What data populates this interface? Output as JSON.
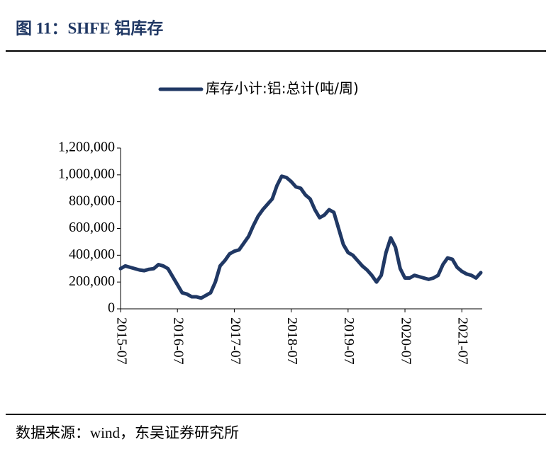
{
  "chart_data": {
    "type": "line",
    "title": "图 11：SHFE 铝库存",
    "source": "数据来源：wind，东吴证券研究所",
    "x": [
      "2015-07",
      "2015-08",
      "2015-09",
      "2015-10",
      "2015-11",
      "2015-12",
      "2016-01",
      "2016-02",
      "2016-03",
      "2016-04",
      "2016-05",
      "2016-06",
      "2016-07",
      "2016-08",
      "2016-09",
      "2016-10",
      "2016-11",
      "2016-12",
      "2017-01",
      "2017-02",
      "2017-03",
      "2017-04",
      "2017-05",
      "2017-06",
      "2017-07",
      "2017-08",
      "2017-09",
      "2017-10",
      "2017-11",
      "2017-12",
      "2018-01",
      "2018-02",
      "2018-03",
      "2018-04",
      "2018-05",
      "2018-06",
      "2018-07",
      "2018-08",
      "2018-09",
      "2018-10",
      "2018-11",
      "2018-12",
      "2019-01",
      "2019-02",
      "2019-03",
      "2019-04",
      "2019-05",
      "2019-06",
      "2019-07",
      "2019-08",
      "2019-09",
      "2019-10",
      "2019-11",
      "2019-12",
      "2020-01",
      "2020-02",
      "2020-03",
      "2020-04",
      "2020-05",
      "2020-06",
      "2020-07",
      "2020-08",
      "2020-09",
      "2020-10",
      "2020-11",
      "2020-12",
      "2021-01",
      "2021-02",
      "2021-03",
      "2021-04",
      "2021-05",
      "2021-06",
      "2021-07",
      "2021-08",
      "2021-09",
      "2021-10",
      "2021-11"
    ],
    "series": [
      {
        "name": "库存小计:铝:总计(吨/周)",
        "color": "#203864",
        "values": [
          300000,
          320000,
          310000,
          300000,
          290000,
          285000,
          295000,
          300000,
          330000,
          320000,
          300000,
          240000,
          180000,
          120000,
          110000,
          90000,
          90000,
          80000,
          100000,
          120000,
          200000,
          320000,
          360000,
          410000,
          430000,
          440000,
          490000,
          540000,
          620000,
          690000,
          740000,
          780000,
          820000,
          920000,
          990000,
          980000,
          950000,
          910000,
          900000,
          850000,
          820000,
          740000,
          680000,
          700000,
          740000,
          720000,
          600000,
          480000,
          420000,
          400000,
          360000,
          320000,
          290000,
          250000,
          200000,
          250000,
          420000,
          530000,
          460000,
          300000,
          230000,
          230000,
          250000,
          240000,
          230000,
          220000,
          230000,
          250000,
          330000,
          380000,
          370000,
          310000,
          280000,
          260000,
          250000,
          230000,
          270000
        ]
      }
    ],
    "xlim": [
      "2015-07",
      "2021-11"
    ],
    "xticks": [
      "2015-07",
      "2016-07",
      "2017-07",
      "2018-07",
      "2019-07",
      "2020-07",
      "2021-07"
    ],
    "ylim": [
      0,
      1200000
    ],
    "yticks": [
      0,
      {
        "value": 200000,
        "label": "200,000"
      },
      {
        "value": 400000,
        "label": "400,000"
      },
      {
        "value": 600000,
        "label": "600,000"
      },
      {
        "value": 800000,
        "label": "800,000"
      },
      {
        "value": 1000000,
        "label": "1,000,000"
      },
      {
        "value": 1200000,
        "label": "1,200,000"
      }
    ]
  }
}
